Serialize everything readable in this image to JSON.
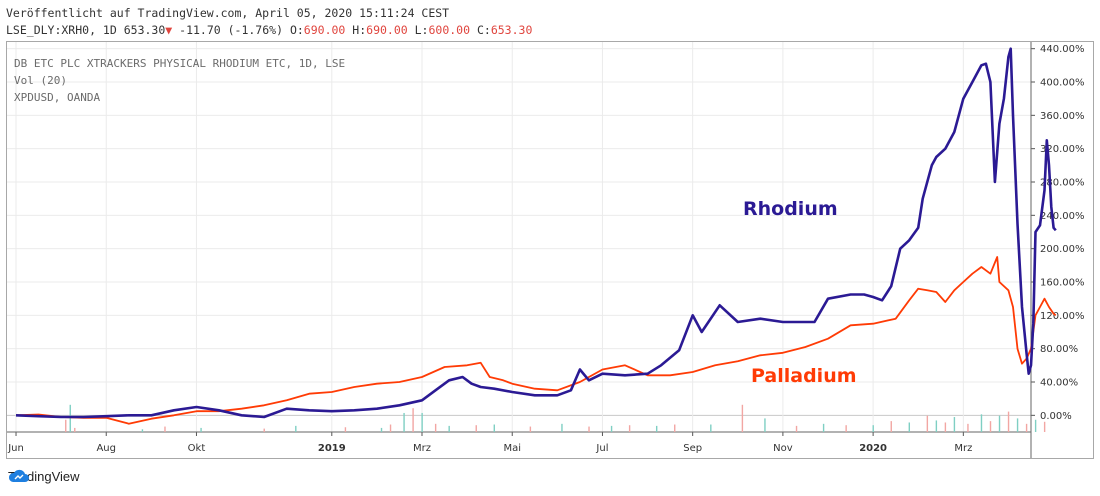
{
  "header": {
    "line1": "Veröffentlicht auf TradingView.com, April 05, 2020 15:11:24 CEST",
    "symbol": "LSE_DLY:XRH0, 1D",
    "last": "653.30",
    "arrow": "▼",
    "change": "-11.70 (-1.76%)",
    "o_label": "O:",
    "o_value": "690.00",
    "h_label": "H:",
    "h_value": "690.00",
    "l_label": "L:",
    "l_value": "600.00",
    "c_label": "C:",
    "c_value": "653.30"
  },
  "legend": [
    "DB ETC PLC XTRACKERS PHYSICAL RHODIUM ETC, 1D, LSE",
    "Vol (20)",
    "XPDUSD, OANDA"
  ],
  "footer": {
    "brand": "TradingView"
  },
  "colors": {
    "rhodium": "#2b1a94",
    "palladium": "#ff3b05",
    "grid": "#ebebeb"
  },
  "chart_data": {
    "type": "line",
    "y_axis": {
      "unit": "%",
      "ticks": [
        0,
        40,
        80,
        120,
        160,
        200,
        240,
        280,
        320,
        360,
        400,
        440
      ],
      "tick_labels": [
        "0.00%",
        "40.00%",
        "80.00%",
        "120.00%",
        "160.00%",
        "200.00%",
        "240.00%",
        "280.00%",
        "320.00%",
        "360.00%",
        "400.00%",
        "440.00%"
      ],
      "range": [
        -20,
        448
      ]
    },
    "x_axis": {
      "unit": "months since Jun 2018",
      "ticks": [
        0,
        2,
        4,
        7,
        9,
        11,
        13,
        15,
        17,
        19,
        21
      ],
      "tick_labels": [
        "Jun",
        "Aug",
        "Okt",
        "2019",
        "Mrz",
        "Mai",
        "Jul",
        "Sep",
        "Nov",
        "2020",
        "Mrz"
      ],
      "bold_labels": [
        "2019",
        "2020"
      ],
      "range": [
        -0.2,
        22.5
      ]
    },
    "grid": true,
    "annotations": [
      {
        "text": "Rhodium",
        "series": "Rhodium"
      },
      {
        "text": "Palladium",
        "series": "Palladium"
      }
    ],
    "series": [
      {
        "name": "Rhodium",
        "points": [
          [
            0,
            0
          ],
          [
            0.5,
            -1
          ],
          [
            1,
            -2
          ],
          [
            1.5,
            -2
          ],
          [
            2,
            -1
          ],
          [
            2.5,
            0
          ],
          [
            3,
            0
          ],
          [
            3.5,
            6
          ],
          [
            4,
            10
          ],
          [
            4.5,
            6
          ],
          [
            5,
            0
          ],
          [
            5.5,
            -2
          ],
          [
            6,
            8
          ],
          [
            6.5,
            6
          ],
          [
            7,
            5
          ],
          [
            7.5,
            6
          ],
          [
            8,
            8
          ],
          [
            8.5,
            12
          ],
          [
            9,
            18
          ],
          [
            9.3,
            30
          ],
          [
            9.6,
            42
          ],
          [
            9.9,
            46
          ],
          [
            10.1,
            38
          ],
          [
            10.3,
            34
          ],
          [
            10.6,
            32
          ],
          [
            11,
            28
          ],
          [
            11.5,
            24
          ],
          [
            12,
            24
          ],
          [
            12.3,
            30
          ],
          [
            12.5,
            55
          ],
          [
            12.7,
            42
          ],
          [
            13,
            50
          ],
          [
            13.5,
            48
          ],
          [
            14,
            50
          ],
          [
            14.3,
            60
          ],
          [
            14.7,
            78
          ],
          [
            15,
            120
          ],
          [
            15.2,
            100
          ],
          [
            15.6,
            132
          ],
          [
            16,
            112
          ],
          [
            16.5,
            116
          ],
          [
            17,
            112
          ],
          [
            17.4,
            112
          ],
          [
            17.7,
            112
          ],
          [
            18,
            140
          ],
          [
            18.5,
            145
          ],
          [
            18.8,
            145
          ],
          [
            19,
            142
          ],
          [
            19.2,
            138
          ],
          [
            19.4,
            155
          ],
          [
            19.6,
            200
          ],
          [
            19.8,
            210
          ],
          [
            20,
            225
          ],
          [
            20.1,
            260
          ],
          [
            20.3,
            300
          ],
          [
            20.4,
            310
          ],
          [
            20.6,
            320
          ],
          [
            20.8,
            340
          ],
          [
            21,
            380
          ],
          [
            21.2,
            400
          ],
          [
            21.4,
            420
          ],
          [
            21.5,
            422
          ],
          [
            21.6,
            400
          ],
          [
            21.7,
            280
          ],
          [
            21.8,
            350
          ],
          [
            21.9,
            380
          ],
          [
            22,
            430
          ],
          [
            22.05,
            440
          ],
          [
            22.1,
            360
          ],
          [
            22.2,
            230
          ],
          [
            22.3,
            130
          ],
          [
            22.4,
            75
          ],
          [
            22.45,
            50
          ],
          [
            22.5,
            60
          ],
          [
            22.55,
            110
          ],
          [
            22.6,
            220
          ],
          [
            22.7,
            228
          ],
          [
            22.8,
            270
          ],
          [
            22.85,
            330
          ],
          [
            22.9,
            300
          ],
          [
            22.95,
            250
          ],
          [
            23,
            225
          ],
          [
            23.05,
            222
          ]
        ]
      },
      {
        "name": "Palladium",
        "points": [
          [
            0,
            0
          ],
          [
            0.5,
            1
          ],
          [
            1,
            -2
          ],
          [
            1.5,
            -3
          ],
          [
            2,
            -3
          ],
          [
            2.5,
            -10
          ],
          [
            3,
            -4
          ],
          [
            3.5,
            0
          ],
          [
            4,
            5
          ],
          [
            4.5,
            5
          ],
          [
            5,
            8
          ],
          [
            5.5,
            12
          ],
          [
            6,
            18
          ],
          [
            6.5,
            26
          ],
          [
            7,
            28
          ],
          [
            7.5,
            34
          ],
          [
            8,
            38
          ],
          [
            8.5,
            40
          ],
          [
            9,
            46
          ],
          [
            9.5,
            58
          ],
          [
            10,
            60
          ],
          [
            10.3,
            63
          ],
          [
            10.5,
            46
          ],
          [
            10.8,
            42
          ],
          [
            11,
            38
          ],
          [
            11.5,
            32
          ],
          [
            12,
            30
          ],
          [
            12.5,
            40
          ],
          [
            13,
            55
          ],
          [
            13.5,
            60
          ],
          [
            14,
            48
          ],
          [
            14.5,
            48
          ],
          [
            15,
            52
          ],
          [
            15.5,
            60
          ],
          [
            16,
            65
          ],
          [
            16.5,
            72
          ],
          [
            17,
            75
          ],
          [
            17.5,
            82
          ],
          [
            18,
            92
          ],
          [
            18.5,
            108
          ],
          [
            19,
            110
          ],
          [
            19.5,
            116
          ],
          [
            19.8,
            138
          ],
          [
            20,
            152
          ],
          [
            20.2,
            150
          ],
          [
            20.4,
            148
          ],
          [
            20.6,
            136
          ],
          [
            20.8,
            150
          ],
          [
            21,
            160
          ],
          [
            21.2,
            170
          ],
          [
            21.4,
            178
          ],
          [
            21.6,
            170
          ],
          [
            21.75,
            190
          ],
          [
            21.8,
            160
          ],
          [
            22,
            150
          ],
          [
            22.1,
            130
          ],
          [
            22.2,
            80
          ],
          [
            22.3,
            62
          ],
          [
            22.4,
            68
          ],
          [
            22.5,
            80
          ],
          [
            22.6,
            120
          ],
          [
            22.7,
            130
          ],
          [
            22.8,
            140
          ],
          [
            22.9,
            130
          ],
          [
            23,
            122
          ],
          [
            23.05,
            120
          ]
        ]
      }
    ],
    "volume": {
      "name": "Vol (20)",
      "bars": [
        [
          1.1,
          18
        ],
        [
          1.2,
          40
        ],
        [
          1.3,
          6
        ],
        [
          2.8,
          4
        ],
        [
          3.3,
          8
        ],
        [
          4.1,
          6
        ],
        [
          5.5,
          5
        ],
        [
          6.2,
          9
        ],
        [
          7.3,
          7
        ],
        [
          8.1,
          6
        ],
        [
          8.3,
          11
        ],
        [
          8.6,
          28
        ],
        [
          8.8,
          35
        ],
        [
          9.0,
          28
        ],
        [
          9.3,
          12
        ],
        [
          9.6,
          9
        ],
        [
          10.2,
          10
        ],
        [
          10.6,
          11
        ],
        [
          11.4,
          8
        ],
        [
          12.1,
          12
        ],
        [
          12.7,
          8
        ],
        [
          13.2,
          9
        ],
        [
          13.6,
          10
        ],
        [
          14.2,
          9
        ],
        [
          14.6,
          11
        ],
        [
          15.4,
          11
        ],
        [
          16.1,
          40
        ],
        [
          16.6,
          20
        ],
        [
          17.3,
          9
        ],
        [
          17.9,
          12
        ],
        [
          18.4,
          10
        ],
        [
          19.0,
          10
        ],
        [
          19.4,
          16
        ],
        [
          19.8,
          14
        ],
        [
          20.2,
          24
        ],
        [
          20.4,
          17
        ],
        [
          20.6,
          14
        ],
        [
          20.8,
          22
        ],
        [
          21.1,
          12
        ],
        [
          21.4,
          26
        ],
        [
          21.6,
          16
        ],
        [
          21.8,
          24
        ],
        [
          22.0,
          30
        ],
        [
          22.2,
          20
        ],
        [
          22.4,
          12
        ],
        [
          22.6,
          18
        ],
        [
          22.8,
          15
        ]
      ],
      "colors": [
        "#f2a6a3",
        "#7fcfc3"
      ],
      "max": 50
    }
  }
}
